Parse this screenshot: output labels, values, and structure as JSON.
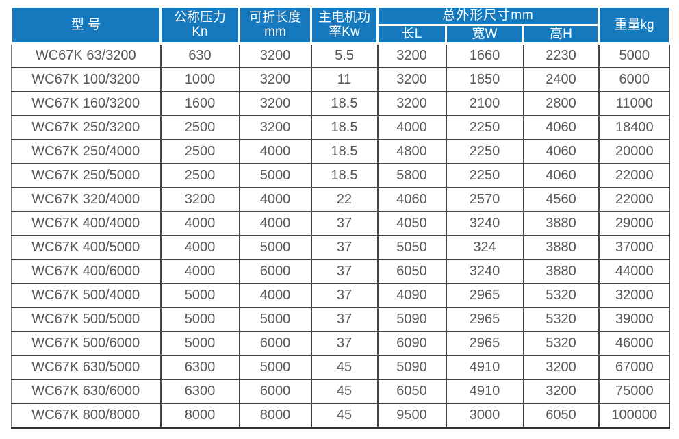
{
  "table": {
    "title_semantic": "WC67K press brake specification table",
    "header": {
      "model": "型 号",
      "pressure": "公称压力\nKn",
      "length": "可折长度\nmm",
      "motor": "主电机功\n率Kw",
      "dimensions": "总外形尺寸mm",
      "dim_l": "长L",
      "dim_w": "宽W",
      "dim_h": "高H",
      "weight": "重量kg"
    },
    "column_keys": [
      "model",
      "pressure-kn",
      "length-mm",
      "power-kw",
      "dim-l",
      "dim-w",
      "dim-h",
      "weight-kg"
    ],
    "colors": {
      "header_bg": "#1779bd",
      "header_text": "#ffffff",
      "body_text": "#55555a",
      "grid_border": "#454548"
    },
    "rows": [
      [
        "WC67K 63/3200",
        "630",
        "3200",
        "5.5",
        "3200",
        "1660",
        "2230",
        "5000"
      ],
      [
        "WC67K 100/3200",
        "1000",
        "3200",
        "11",
        "3200",
        "1850",
        "2400",
        "6000"
      ],
      [
        "WC67K 160/3200",
        "1600",
        "3200",
        "18.5",
        "3200",
        "2100",
        "2800",
        "11000"
      ],
      [
        "WC67K 250/3200",
        "2500",
        "3200",
        "18.5",
        "4000",
        "2250",
        "4060",
        "18400"
      ],
      [
        "WC67K 250/4000",
        "2500",
        "4000",
        "18.5",
        "4800",
        "2250",
        "4060",
        "20000"
      ],
      [
        "WC67K 250/5000",
        "2500",
        "5000",
        "18.5",
        "5800",
        "2250",
        "4060",
        "22000"
      ],
      [
        "WC67K 320/4000",
        "3200",
        "4000",
        "22",
        "4060",
        "2570",
        "4560",
        "22000"
      ],
      [
        "WC67K 400/4000",
        "4000",
        "4000",
        "37",
        "4050",
        "3240",
        "3880",
        "29000"
      ],
      [
        "WC67K 400/5000",
        "4000",
        "5000",
        "37",
        "5050",
        "324",
        "3880",
        "37000"
      ],
      [
        "WC67K 400/6000",
        "4000",
        "6000",
        "37",
        "6050",
        "3240",
        "3880",
        "44000"
      ],
      [
        "WC67K 500/4000",
        "5000",
        "4000",
        "37",
        "4090",
        "2965",
        "5320",
        "32000"
      ],
      [
        "WC67K 500/5000",
        "5000",
        "5000",
        "37",
        "5090",
        "2965",
        "5320",
        "39000"
      ],
      [
        "WC67K 500/6000",
        "5000",
        "6000",
        "37",
        "6090",
        "2965",
        "5320",
        "46000"
      ],
      [
        "WC67K 630/5000",
        "6300",
        "5000",
        "45",
        "5090",
        "4910",
        "3200",
        "67000"
      ],
      [
        "WC67K 630/6000",
        "6300",
        "6000",
        "45",
        "6050",
        "4910",
        "3200",
        "75000"
      ],
      [
        "WC67K 800/8000",
        "8000",
        "8000",
        "45",
        "9500",
        "3000",
        "6050",
        "100000"
      ]
    ]
  }
}
